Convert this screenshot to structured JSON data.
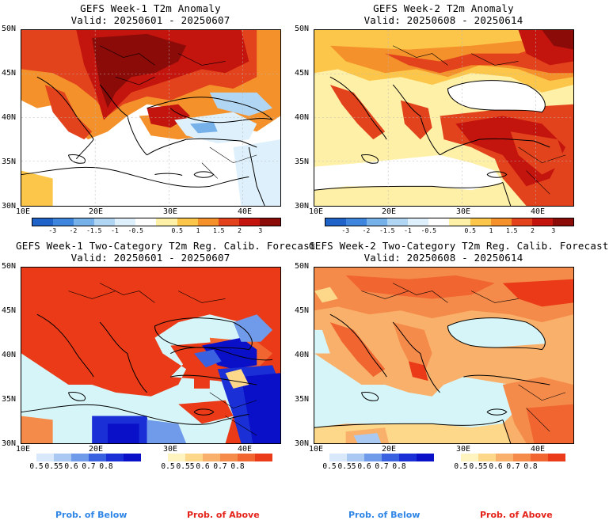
{
  "panels": [
    {
      "title_line1": "GEFS Week-1 T2m Anomaly",
      "title_line2": "Valid: 20250601 - 20250607"
    },
    {
      "title_line1": "GEFS Week-2 T2m Anomaly",
      "title_line2": "Valid: 20250608 - 20250614"
    },
    {
      "title_line1": "GEFS Week-1 Two-Category T2m Reg. Calib. Forecast",
      "title_line2": "Valid: 20250601 - 20250607"
    },
    {
      "title_line1": "GEFS Week-2 Two-Category T2m Reg. Calib. Forecast",
      "title_line2": "Valid: 20250608 - 20250614"
    }
  ],
  "axes": {
    "lat_labels": [
      "50N",
      "45N",
      "40N",
      "35N",
      "30N"
    ],
    "lon_labels": [
      "10E",
      "20E",
      "30E",
      "40E"
    ]
  },
  "anomaly_colorbar": {
    "ticks": [
      "-3",
      "-2",
      "-1.5",
      "-1",
      "-0.5",
      "0.5",
      "1",
      "1.5",
      "2",
      "3"
    ],
    "colors": [
      "#1f62c8",
      "#3d85dd",
      "#76b1ea",
      "#b1d6f4",
      "#def0fb",
      "#ffffff",
      "#fff0a8",
      "#fcc64b",
      "#f4912a",
      "#e2431c",
      "#c4140e",
      "#8a0b08"
    ]
  },
  "prob_below": {
    "ticks": [
      "0.5",
      "0.55",
      "0.6",
      "0.7",
      "0.8"
    ],
    "colors": [
      "#d9e8fb",
      "#aac9f2",
      "#6f9bea",
      "#3a62e0",
      "#1a2fd6",
      "#0a0fc8"
    ]
  },
  "prob_above": {
    "ticks": [
      "0.5",
      "0.55",
      "0.6",
      "0.7",
      "0.8"
    ],
    "colors": [
      "#fff3c0",
      "#fdd78a",
      "#f9b06a",
      "#f58b4a",
      "#f06530",
      "#ea3a17"
    ]
  },
  "legend": {
    "below_label": "Prob. of Below",
    "above_label": "Prob. of Above",
    "below_color": "#2f86e6",
    "above_color": "#e4231b"
  },
  "map_colors": {
    "sea_anomaly": "#ffffff",
    "sea_prob": "#d6f5f8"
  }
}
